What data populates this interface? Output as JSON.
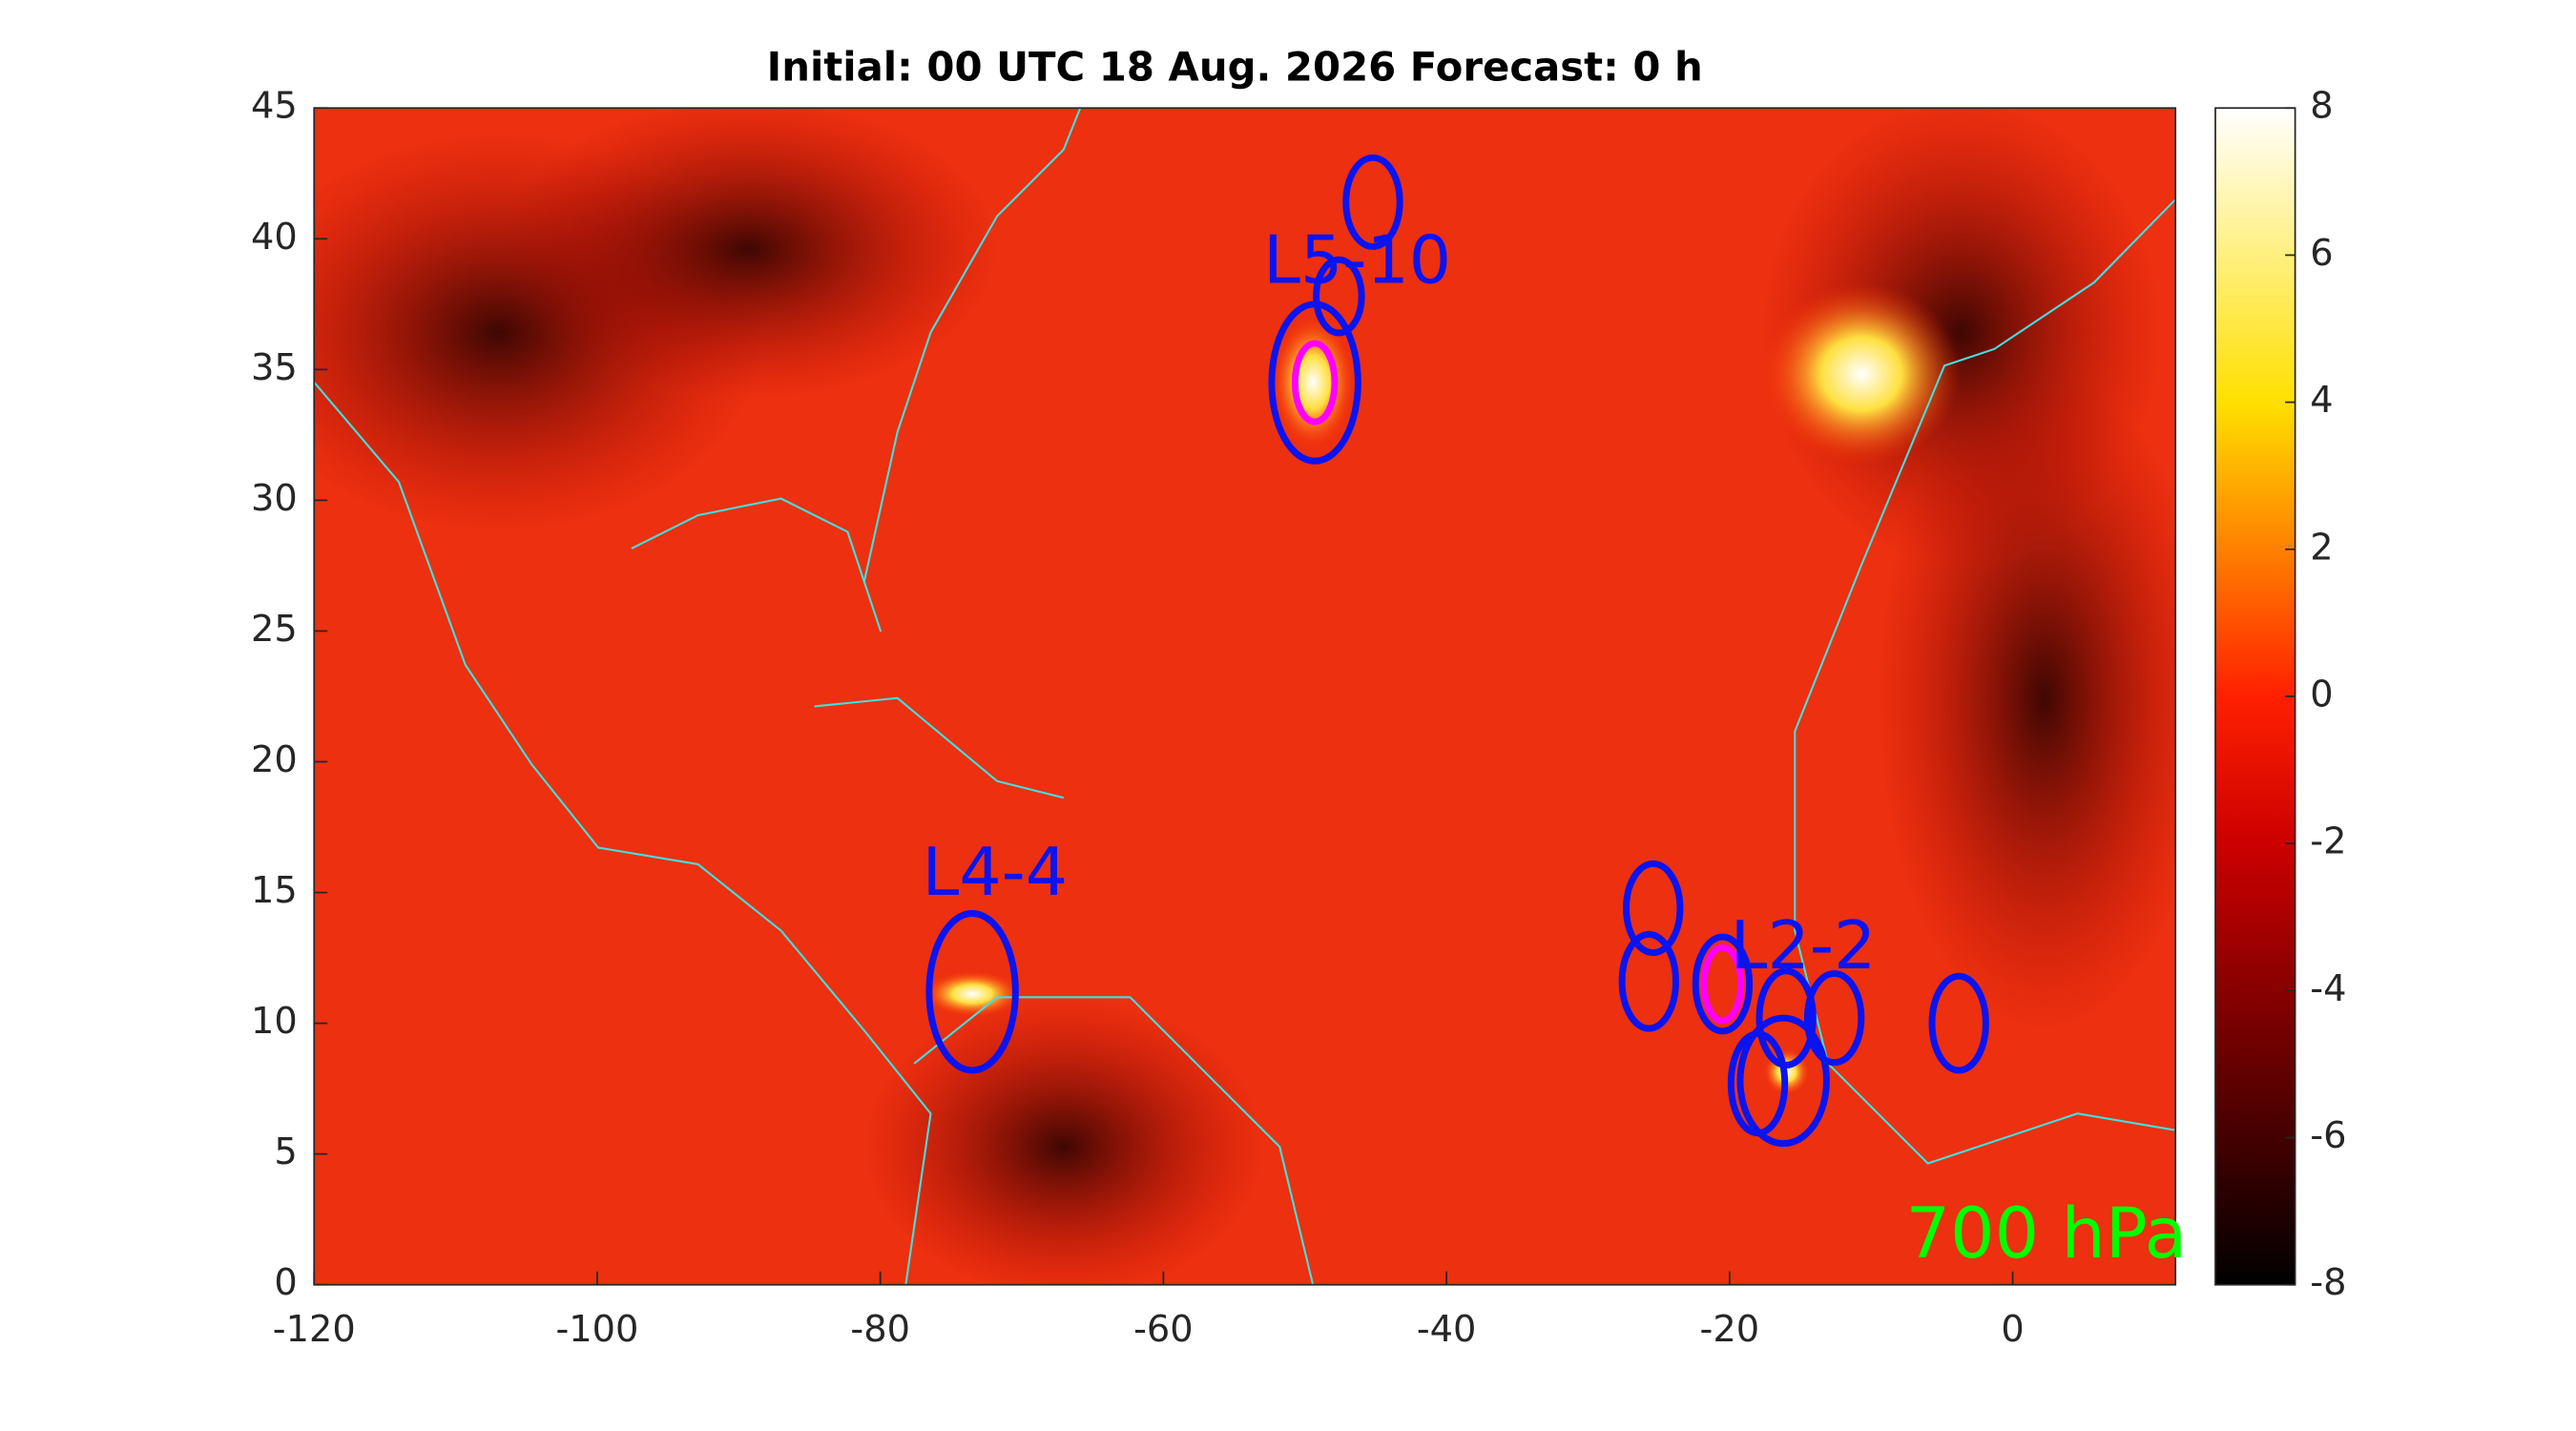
{
  "chart_data": {
    "type": "map",
    "title": "Initial: 00 UTC 18 Aug. 2026 Forecast: 0 h",
    "level_label": "700 hPa",
    "xlim": [
      -120,
      11.5
    ],
    "ylim": [
      0,
      45
    ],
    "xticks": [
      -120,
      -100,
      -80,
      -60,
      -40,
      -20,
      0
    ],
    "yticks": [
      0,
      5,
      10,
      15,
      20,
      25,
      30,
      35,
      40,
      45
    ],
    "colorbar": {
      "lim": [
        -8,
        8
      ],
      "ticks": [
        -8,
        -6,
        -4,
        -2,
        0,
        2,
        4,
        6,
        8
      ]
    },
    "systems": [
      {
        "label": "L5-10",
        "lon": -46.3,
        "lat": 39.0
      },
      {
        "label": "L4-4",
        "lon": -71.9,
        "lat": 15.6
      },
      {
        "label": "L2-2",
        "lon": -14.8,
        "lat": 12.8
      }
    ],
    "ellipses": [
      {
        "lon": -45.2,
        "lat": 41.4,
        "rx": 1.9,
        "ry": 1.7,
        "color": "#0a14f0"
      },
      {
        "lon": -47.6,
        "lat": 37.8,
        "rx": 1.6,
        "ry": 1.4,
        "color": "#0a14f0"
      },
      {
        "lon": -49.3,
        "lat": 34.5,
        "rx": 3.05,
        "ry": 3.0,
        "color": "#0a14f0"
      },
      {
        "lon": -49.3,
        "lat": 34.5,
        "rx": 1.4,
        "ry": 1.5,
        "color": "#ff00ff"
      },
      {
        "lon": -73.5,
        "lat": 11.2,
        "rx": 3.05,
        "ry": 3.0,
        "color": "#0a14f0"
      },
      {
        "lon": -25.4,
        "lat": 14.4,
        "rx": 1.9,
        "ry": 1.7,
        "color": "#0a14f0"
      },
      {
        "lon": -25.7,
        "lat": 11.6,
        "rx": 1.9,
        "ry": 1.8,
        "color": "#0a14f0"
      },
      {
        "lon": -20.5,
        "lat": 11.5,
        "rx": 1.9,
        "ry": 1.8,
        "color": "#0a14f0"
      },
      {
        "lon": -20.5,
        "lat": 11.5,
        "rx": 1.3,
        "ry": 1.4,
        "color": "#ff00ff"
      },
      {
        "lon": -16.0,
        "lat": 10.2,
        "rx": 1.9,
        "ry": 1.8,
        "color": "#0a14f0"
      },
      {
        "lon": -12.6,
        "lat": 10.2,
        "rx": 1.9,
        "ry": 1.7,
        "color": "#0a14f0"
      },
      {
        "lon": -3.8,
        "lat": 10.0,
        "rx": 1.9,
        "ry": 1.8,
        "color": "#0a14f0"
      },
      {
        "lon": -18.0,
        "lat": 7.7,
        "rx": 1.9,
        "ry": 1.9,
        "color": "#0a14f0"
      },
      {
        "lon": -16.2,
        "lat": 7.8,
        "rx": 3.05,
        "ry": 2.4,
        "color": "#0a14f0"
      }
    ]
  }
}
